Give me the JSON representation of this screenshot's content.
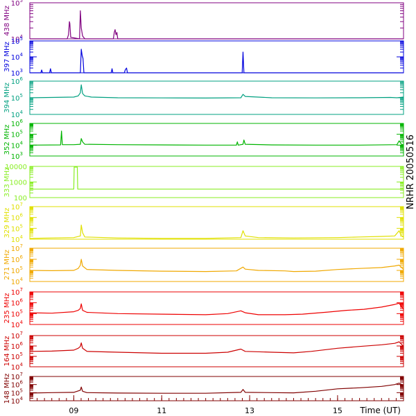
{
  "chart_data": {
    "type": "line",
    "x_axis": {
      "label": "Time (UT)",
      "start_hour": 8,
      "end_hour": 16.5,
      "ticks": [
        {
          "hour": 9,
          "label": "09"
        },
        {
          "hour": 11,
          "label": "11"
        },
        {
          "hour": 13,
          "label": "13"
        },
        {
          "hour": 15,
          "label": "15"
        }
      ]
    },
    "side_label": "NRHR 20050516",
    "panels": [
      {
        "name": "438 MHz",
        "color": "#800080",
        "scale": "log",
        "range": [
          10000,
          100000
        ],
        "ticks": [
          {
            "v": 10000,
            "label": "10",
            "exp": "4"
          },
          {
            "v": 100000,
            "label": "10",
            "exp": "5"
          }
        ],
        "points": [
          [
            8.0,
            10000
          ],
          [
            8.85,
            10000
          ],
          [
            8.88,
            13000
          ],
          [
            8.9,
            30000
          ],
          [
            8.91,
            27000
          ],
          [
            8.93,
            11000
          ],
          [
            9.13,
            10000
          ],
          [
            9.15,
            60000
          ],
          [
            9.17,
            20000
          ],
          [
            9.2,
            12000
          ],
          [
            9.25,
            10000
          ],
          [
            9.9,
            10000
          ],
          [
            9.92,
            15000
          ],
          [
            9.94,
            18000
          ],
          [
            9.96,
            13000
          ],
          [
            9.98,
            15000
          ],
          [
            10.0,
            10000
          ],
          [
            16.5,
            10000
          ]
        ]
      },
      {
        "name": "397 MHz",
        "color": "#0000dd",
        "scale": "log",
        "range": [
          1000,
          100000
        ],
        "ticks": [
          {
            "v": 1000,
            "label": "10",
            "exp": "3"
          },
          {
            "v": 10000,
            "label": "10",
            "exp": "4"
          },
          {
            "v": 100000,
            "label": "10",
            "exp": "5"
          }
        ],
        "points": [
          [
            8.0,
            1000
          ],
          [
            8.25,
            1000
          ],
          [
            8.27,
            1500
          ],
          [
            8.29,
            1000
          ],
          [
            8.45,
            1000
          ],
          [
            8.47,
            1800
          ],
          [
            8.49,
            1000
          ],
          [
            9.15,
            1000
          ],
          [
            9.17,
            30000
          ],
          [
            9.19,
            12000
          ],
          [
            9.21,
            8000
          ],
          [
            9.23,
            1000
          ],
          [
            9.85,
            1000
          ],
          [
            9.87,
            1800
          ],
          [
            9.89,
            1000
          ],
          [
            10.15,
            1000
          ],
          [
            10.17,
            1500
          ],
          [
            10.2,
            2000
          ],
          [
            10.22,
            1000
          ],
          [
            12.83,
            1000
          ],
          [
            12.85,
            20000
          ],
          [
            12.87,
            1000
          ],
          [
            16.5,
            1000
          ]
        ]
      },
      {
        "name": "394 MHz",
        "color": "#00a080",
        "scale": "log",
        "range": [
          10000,
          1000000
        ],
        "ticks": [
          {
            "v": 10000,
            "label": "10",
            "exp": "4"
          },
          {
            "v": 100000,
            "label": "10",
            "exp": "5"
          },
          {
            "v": 1000000,
            "label": "10",
            "exp": "6"
          }
        ],
        "points": [
          [
            8.0,
            100000
          ],
          [
            8.5,
            105000
          ],
          [
            9.0,
            110000
          ],
          [
            9.1,
            130000
          ],
          [
            9.15,
            200000
          ],
          [
            9.17,
            600000
          ],
          [
            9.2,
            180000
          ],
          [
            9.25,
            130000
          ],
          [
            9.4,
            110000
          ],
          [
            10.0,
            100000
          ],
          [
            11.0,
            98000
          ],
          [
            12.0,
            96000
          ],
          [
            12.8,
            100000
          ],
          [
            12.85,
            160000
          ],
          [
            12.9,
            120000
          ],
          [
            13.5,
            100000
          ],
          [
            14.5,
            98000
          ],
          [
            15.5,
            100000
          ],
          [
            16.2,
            105000
          ],
          [
            16.35,
            100000
          ],
          [
            16.5,
            110000
          ]
        ]
      },
      {
        "name": "352 MHz",
        "color": "#00b400",
        "scale": "log",
        "range": [
          1000,
          1000000
        ],
        "ticks": [
          {
            "v": 1000,
            "label": "10",
            "exp": "3"
          },
          {
            "v": 10000,
            "label": "10",
            "exp": "4"
          },
          {
            "v": 100000,
            "label": "10",
            "exp": "5"
          },
          {
            "v": 1000000,
            "label": "10",
            "exp": "6"
          }
        ],
        "points": [
          [
            8.0,
            10000
          ],
          [
            8.7,
            10500
          ],
          [
            8.72,
            200000
          ],
          [
            8.74,
            11000
          ],
          [
            9.0,
            11000
          ],
          [
            9.15,
            12000
          ],
          [
            9.17,
            40000
          ],
          [
            9.2,
            20000
          ],
          [
            9.25,
            12000
          ],
          [
            10.0,
            11000
          ],
          [
            11.0,
            10500
          ],
          [
            12.0,
            10000
          ],
          [
            12.7,
            10000
          ],
          [
            12.72,
            20000
          ],
          [
            12.74,
            10000
          ],
          [
            12.85,
            12000
          ],
          [
            12.87,
            30000
          ],
          [
            12.9,
            12000
          ],
          [
            13.5,
            10500
          ],
          [
            14.5,
            10000
          ],
          [
            15.5,
            10000
          ],
          [
            16.35,
            11000
          ],
          [
            16.4,
            25000
          ],
          [
            16.45,
            12000
          ],
          [
            16.5,
            11000
          ]
        ]
      },
      {
        "name": "333 MHz",
        "color": "#88ee22",
        "scale": "log",
        "range": [
          100,
          10000
        ],
        "ticks": [
          {
            "v": 100,
            "label": "100"
          },
          {
            "v": 1000,
            "label": "1000"
          },
          {
            "v": 10000,
            "label": "10000"
          }
        ],
        "points": [
          [
            8.0,
            350
          ],
          [
            9.0,
            350
          ],
          [
            9.01,
            9000
          ],
          [
            9.08,
            9000
          ],
          [
            9.09,
            350
          ],
          [
            16.5,
            350
          ]
        ]
      },
      {
        "name": "329 MHz",
        "color": "#e0e000",
        "scale": "log",
        "range": [
          10000,
          10000000
        ],
        "ticks": [
          {
            "v": 10000,
            "label": "10",
            "exp": "4"
          },
          {
            "v": 100000,
            "label": "10",
            "exp": "5"
          },
          {
            "v": 1000000,
            "label": "10",
            "exp": "6"
          },
          {
            "v": 10000000,
            "label": "10",
            "exp": "7"
          }
        ],
        "points": [
          [
            8.0,
            12000
          ],
          [
            8.5,
            13000
          ],
          [
            9.0,
            14000
          ],
          [
            9.15,
            20000
          ],
          [
            9.17,
            200000
          ],
          [
            9.2,
            40000
          ],
          [
            9.25,
            16000
          ],
          [
            10.0,
            13000
          ],
          [
            11.0,
            12000
          ],
          [
            12.0,
            12000
          ],
          [
            12.8,
            14000
          ],
          [
            12.85,
            60000
          ],
          [
            12.9,
            20000
          ],
          [
            13.2,
            14000
          ],
          [
            14.0,
            13000
          ],
          [
            15.0,
            14000
          ],
          [
            15.5,
            16000
          ],
          [
            16.0,
            18000
          ],
          [
            16.3,
            20000
          ],
          [
            16.4,
            60000
          ],
          [
            16.45,
            20000
          ],
          [
            16.5,
            16000
          ]
        ]
      },
      {
        "name": "271 MHz",
        "color": "#f0a800",
        "scale": "log",
        "range": [
          10000,
          10000000
        ],
        "ticks": [
          {
            "v": 10000,
            "label": "10",
            "exp": "4"
          },
          {
            "v": 100000,
            "label": "10",
            "exp": "5"
          },
          {
            "v": 1000000,
            "label": "10",
            "exp": "6"
          },
          {
            "v": 10000000,
            "label": "10",
            "exp": "7"
          }
        ],
        "points": [
          [
            8.0,
            100000
          ],
          [
            8.5,
            95000
          ],
          [
            9.0,
            100000
          ],
          [
            9.1,
            150000
          ],
          [
            9.15,
            300000
          ],
          [
            9.17,
            1000000
          ],
          [
            9.2,
            250000
          ],
          [
            9.3,
            120000
          ],
          [
            10.0,
            100000
          ],
          [
            11.0,
            85000
          ],
          [
            12.0,
            80000
          ],
          [
            12.7,
            90000
          ],
          [
            12.85,
            200000
          ],
          [
            12.9,
            130000
          ],
          [
            13.2,
            100000
          ],
          [
            13.8,
            90000
          ],
          [
            14.0,
            80000
          ],
          [
            14.5,
            85000
          ],
          [
            15.0,
            120000
          ],
          [
            15.5,
            150000
          ],
          [
            16.0,
            180000
          ],
          [
            16.3,
            250000
          ],
          [
            16.4,
            300000
          ],
          [
            16.5,
            120000
          ]
        ]
      },
      {
        "name": "235 MHz",
        "color": "#ee0000",
        "scale": "log",
        "range": [
          10000,
          10000000
        ],
        "ticks": [
          {
            "v": 10000,
            "label": "10",
            "exp": "4"
          },
          {
            "v": 100000,
            "label": "10",
            "exp": "5"
          },
          {
            "v": 1000000,
            "label": "10",
            "exp": "6"
          },
          {
            "v": 10000000,
            "label": "10",
            "exp": "7"
          }
        ],
        "points": [
          [
            8.0,
            120000
          ],
          [
            8.5,
            110000
          ],
          [
            9.0,
            150000
          ],
          [
            9.1,
            200000
          ],
          [
            9.15,
            300000
          ],
          [
            9.17,
            800000
          ],
          [
            9.2,
            200000
          ],
          [
            9.3,
            130000
          ],
          [
            10.0,
            100000
          ],
          [
            11.0,
            90000
          ],
          [
            12.0,
            80000
          ],
          [
            12.5,
            100000
          ],
          [
            12.8,
            180000
          ],
          [
            12.9,
            120000
          ],
          [
            13.2,
            80000
          ],
          [
            13.8,
            80000
          ],
          [
            14.2,
            90000
          ],
          [
            14.8,
            140000
          ],
          [
            15.2,
            200000
          ],
          [
            15.6,
            250000
          ],
          [
            16.0,
            400000
          ],
          [
            16.3,
            700000
          ],
          [
            16.4,
            900000
          ],
          [
            16.5,
            250000
          ]
        ]
      },
      {
        "name": "164 MHz",
        "color": "#cc0000",
        "scale": "log",
        "range": [
          10000,
          10000000
        ],
        "ticks": [
          {
            "v": 10000,
            "label": "10",
            "exp": "4"
          },
          {
            "v": 100000,
            "label": "10",
            "exp": "5"
          },
          {
            "v": 1000000,
            "label": "10",
            "exp": "6"
          },
          {
            "v": 10000000,
            "label": "10",
            "exp": "7"
          }
        ],
        "points": [
          [
            8.0,
            300000
          ],
          [
            8.5,
            320000
          ],
          [
            9.0,
            400000
          ],
          [
            9.1,
            600000
          ],
          [
            9.15,
            900000
          ],
          [
            9.17,
            2000000
          ],
          [
            9.2,
            600000
          ],
          [
            9.3,
            300000
          ],
          [
            10.0,
            250000
          ],
          [
            11.0,
            200000
          ],
          [
            12.0,
            200000
          ],
          [
            12.5,
            250000
          ],
          [
            12.8,
            500000
          ],
          [
            12.9,
            300000
          ],
          [
            13.5,
            250000
          ],
          [
            14.0,
            220000
          ],
          [
            14.4,
            300000
          ],
          [
            15.0,
            600000
          ],
          [
            15.5,
            900000
          ],
          [
            16.0,
            1300000
          ],
          [
            16.3,
            1800000
          ],
          [
            16.4,
            2500000
          ],
          [
            16.5,
            900000
          ]
        ]
      },
      {
        "name": "148 MHz",
        "color": "#800000",
        "scale": "log",
        "range": [
          10000,
          10000000
        ],
        "ticks": [
          {
            "v": 10000,
            "label": "10",
            "exp": "4"
          },
          {
            "v": 100000,
            "label": "10",
            "exp": "5"
          },
          {
            "v": 1000000,
            "label": "10",
            "exp": "6"
          },
          {
            "v": 10000000,
            "label": "10",
            "exp": "7"
          }
        ],
        "points": [
          [
            8.0,
            90000
          ],
          [
            8.5,
            100000
          ],
          [
            9.0,
            110000
          ],
          [
            9.15,
            200000
          ],
          [
            9.17,
            500000
          ],
          [
            9.2,
            150000
          ],
          [
            9.3,
            100000
          ],
          [
            10.0,
            90000
          ],
          [
            11.0,
            85000
          ],
          [
            12.0,
            85000
          ],
          [
            12.8,
            110000
          ],
          [
            12.85,
            250000
          ],
          [
            12.9,
            110000
          ],
          [
            13.5,
            100000
          ],
          [
            14.0,
            95000
          ],
          [
            14.5,
            150000
          ],
          [
            15.0,
            300000
          ],
          [
            15.5,
            400000
          ],
          [
            16.0,
            600000
          ],
          [
            16.3,
            1000000
          ],
          [
            16.4,
            1500000
          ],
          [
            16.5,
            800000
          ]
        ]
      }
    ]
  }
}
